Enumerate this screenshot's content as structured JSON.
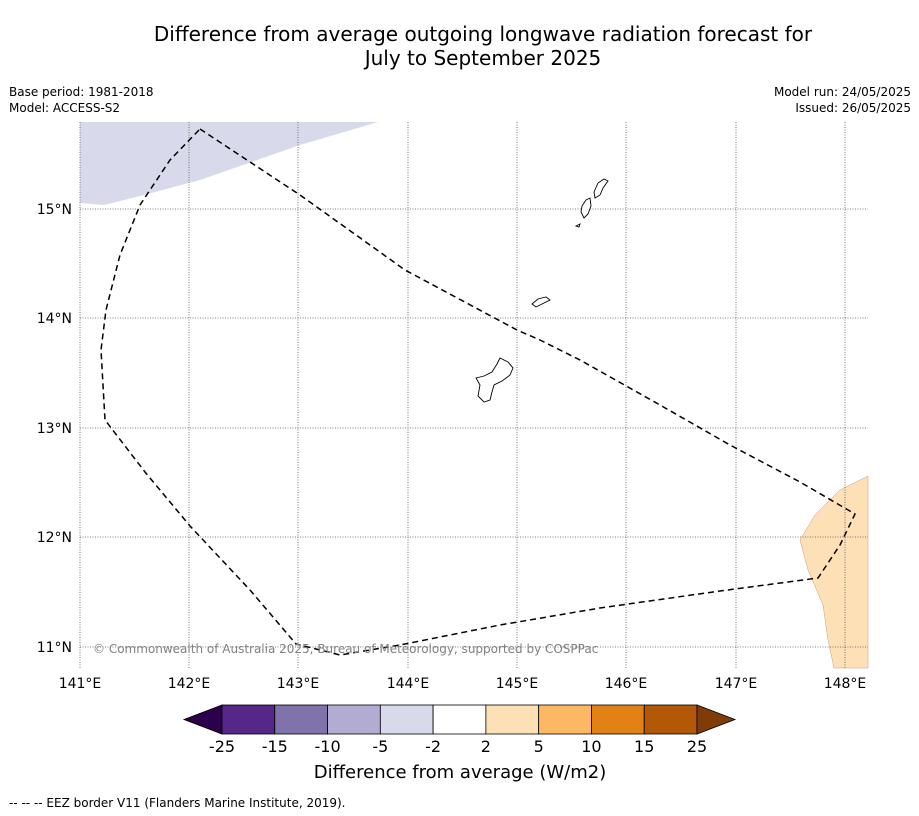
{
  "title_line1": "Difference from average outgoing longwave radiation forecast for",
  "title_line2": "July to September 2025",
  "base_period": "Base period: 1981-2018",
  "model": "Model: ACCESS-S2",
  "model_run": "Model run: 24/05/2025",
  "issued": "Issued: 26/05/2025",
  "copyright": "© Commonwealth of Australia 2025, Bureau of Meteorology, supported by COSPPac",
  "map": {
    "lat_labels": [
      "15°N",
      "14°N",
      "13°N",
      "12°N",
      "11°N"
    ],
    "lon_labels": [
      "141°E",
      "142°E",
      "143°E",
      "144°E",
      "145°E",
      "146°E",
      "147°E",
      "148°E"
    ]
  },
  "colorbar": {
    "ticks": [
      "-25",
      "-15",
      "-10",
      "-5",
      "-2",
      "2",
      "5",
      "10",
      "15",
      "25"
    ],
    "colors": [
      "#2d004b",
      "#542788",
      "#8073ac",
      "#b2abd2",
      "#d8daeb",
      "#ffffff",
      "#fee0b6",
      "#fdb863",
      "#e08214",
      "#b35806",
      "#7f3b08"
    ],
    "label": "Difference from average (W/m2)"
  },
  "footnote": "--  --  -- EEZ border V11 (Flanders Marine Institute, 2019)."
}
